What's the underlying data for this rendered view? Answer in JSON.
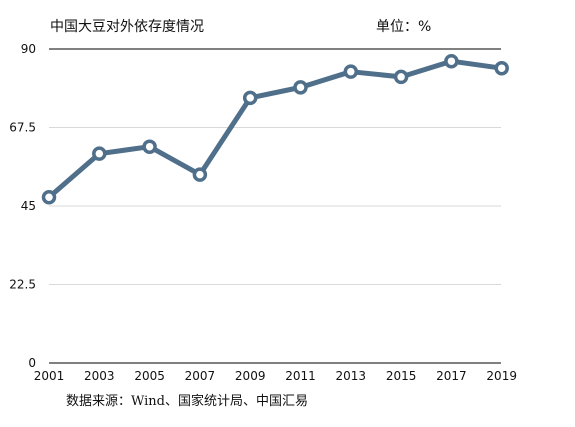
{
  "chart_data": {
    "type": "line",
    "title": "中国大豆对外依存度情况",
    "unit_label": "单位：%",
    "source": "数据来源：Wind、国家统计局、中国汇易",
    "x": [
      "2001",
      "2003",
      "2005",
      "2007",
      "2009",
      "2011",
      "2013",
      "2015",
      "2017",
      "2019"
    ],
    "series": [
      {
        "values": [
          47.5,
          60,
          62,
          54,
          76,
          79,
          83.5,
          82,
          86.5,
          84.5
        ]
      }
    ],
    "y_ticks": [
      "90",
      "67.5",
      "45",
      "22.5",
      "0"
    ],
    "ylim": [
      0,
      90
    ],
    "grid": true,
    "colors": {
      "line": "#4f6f8a",
      "grid": "#d9d9d9",
      "axis": "#000000"
    }
  }
}
